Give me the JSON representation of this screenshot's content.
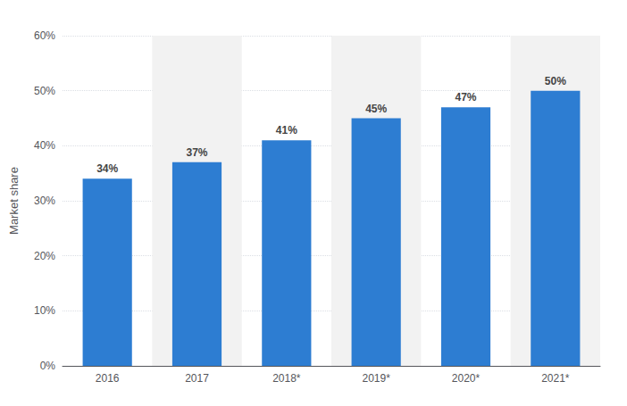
{
  "chart_data": {
    "type": "bar",
    "categories": [
      "2016",
      "2017",
      "2018*",
      "2019*",
      "2020*",
      "2021*"
    ],
    "values": [
      34,
      37,
      41,
      45,
      47,
      50
    ],
    "value_labels": [
      "34%",
      "37%",
      "41%",
      "45%",
      "47%",
      "50%"
    ],
    "data_labels": true,
    "color": "#2d7dd2",
    "ylabel": "Market share",
    "ylim": [
      0,
      60
    ],
    "yticks": [
      {
        "value": 0,
        "label": "0%"
      },
      {
        "value": 10,
        "label": "10%"
      },
      {
        "value": 20,
        "label": "20%"
      },
      {
        "value": 30,
        "label": "30%"
      },
      {
        "value": 40,
        "label": "40%"
      },
      {
        "value": 50,
        "label": "50%"
      },
      {
        "value": 60,
        "label": "60%"
      }
    ],
    "grid": true
  }
}
